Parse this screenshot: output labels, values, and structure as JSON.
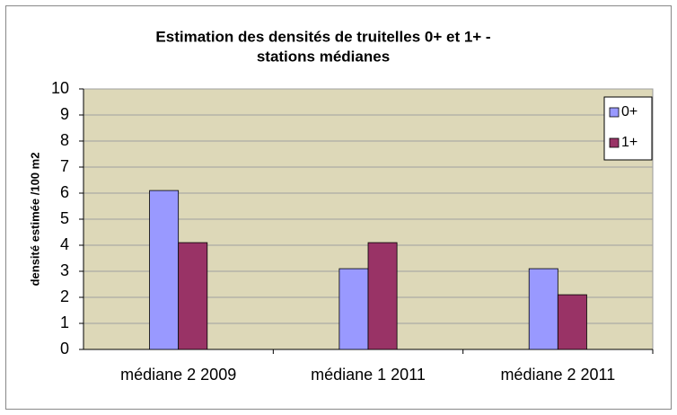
{
  "chart_data": {
    "type": "bar",
    "title": [
      "Estimation des densités de truitelles 0+ et 1+ -",
      "stations médianes"
    ],
    "y_label": "densité estimée /100 m2",
    "categories": [
      "médiane 2 2009",
      "médiane 1 2011",
      "médiane 2 2011"
    ],
    "series": [
      {
        "name": "0+",
        "color": "#9999ff",
        "values": [
          6.1,
          3.1,
          3.1
        ]
      },
      {
        "name": "1+",
        "color": "#993366",
        "values": [
          4.1,
          4.1,
          2.1
        ]
      }
    ],
    "ylim": [
      0,
      10
    ],
    "yticks": [
      0,
      1,
      2,
      3,
      4,
      5,
      6,
      7,
      8,
      9,
      10
    ],
    "grid": true,
    "legend": "top-right"
  }
}
